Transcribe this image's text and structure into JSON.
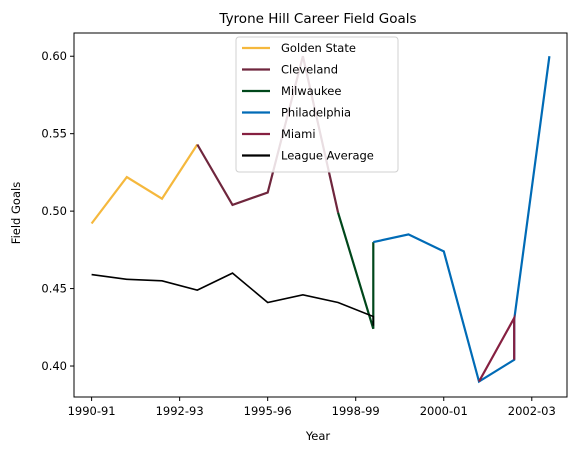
{
  "chart_data": {
    "type": "line",
    "title": "Tyrone Hill Career Field Goals",
    "xlabel": "Year",
    "ylabel": "Field Goals",
    "xlim": [
      -0.5,
      13.5
    ],
    "ylim": [
      0.38,
      0.615
    ],
    "x_ticks": [
      {
        "pos": 0,
        "label": "1990-91"
      },
      {
        "pos": 2.5,
        "label": "1992-93"
      },
      {
        "pos": 5,
        "label": "1995-96"
      },
      {
        "pos": 7.5,
        "label": "1998-99"
      },
      {
        "pos": 10,
        "label": "2000-01"
      },
      {
        "pos": 12.5,
        "label": "2002-03"
      }
    ],
    "y_ticks": [
      {
        "value": 0.4,
        "label": "0.40"
      },
      {
        "value": 0.45,
        "label": "0.45"
      },
      {
        "value": 0.5,
        "label": "0.50"
      },
      {
        "value": 0.55,
        "label": "0.55"
      },
      {
        "value": 0.6,
        "label": "0.60"
      }
    ],
    "grid": false,
    "legend": "top-center",
    "series": [
      {
        "name": "Golden State",
        "color": "#f5b83d",
        "points": [
          [
            0,
            0.492
          ],
          [
            1,
            0.522
          ],
          [
            2,
            0.508
          ],
          [
            3,
            0.543
          ]
        ]
      },
      {
        "name": "Cleveland",
        "color": "#6f263d",
        "points": [
          [
            3,
            0.543
          ],
          [
            4,
            0.504
          ],
          [
            5,
            0.512
          ],
          [
            6,
            0.6
          ],
          [
            7,
            0.499
          ]
        ]
      },
      {
        "name": "Milwaukee",
        "color": "#00471b",
        "points": [
          [
            7,
            0.499
          ],
          [
            8,
            0.424
          ],
          [
            8,
            0.48
          ]
        ]
      },
      {
        "name": "Philadelphia",
        "color": "#006bb6",
        "points": [
          [
            8,
            0.48
          ],
          [
            9,
            0.485
          ],
          [
            10,
            0.474
          ],
          [
            11,
            0.39
          ],
          [
            12,
            0.404
          ],
          [
            12,
            0.43
          ],
          [
            13,
            0.6
          ]
        ]
      },
      {
        "name": "Miami",
        "color": "#862041",
        "points": [
          [
            11,
            0.39
          ],
          [
            12,
            0.431
          ],
          [
            12,
            0.404
          ]
        ]
      },
      {
        "name": "League Average",
        "color": "#000000",
        "points": [
          [
            0,
            0.459
          ],
          [
            1,
            0.456
          ],
          [
            2,
            0.455
          ],
          [
            3,
            0.449
          ],
          [
            4,
            0.46
          ],
          [
            5,
            0.441
          ],
          [
            6,
            0.446
          ],
          [
            7,
            0.441
          ],
          [
            8,
            0.432
          ],
          [
            8,
            0.426
          ]
        ]
      }
    ]
  }
}
